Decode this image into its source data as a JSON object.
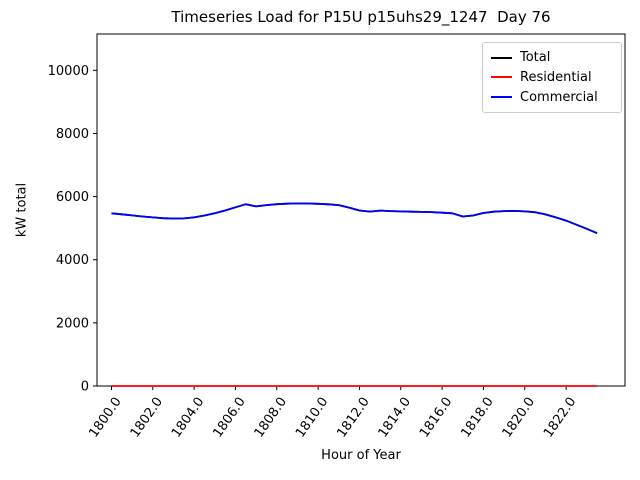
{
  "chart_data": {
    "type": "line",
    "title": "Timeseries Load for P15U p15uhs29_1247  Day 76",
    "xlabel": "Hour of Year",
    "ylabel": "kW total",
    "xlim": [
      1799.3,
      1824.85
    ],
    "ylim": [
      0,
      11150
    ],
    "grid": false,
    "legend_position": "upper right",
    "xticks": [
      {
        "value": 1800,
        "label": "1800.0"
      },
      {
        "value": 1802,
        "label": "1802.0"
      },
      {
        "value": 1804,
        "label": "1804.0"
      },
      {
        "value": 1806,
        "label": "1806.0"
      },
      {
        "value": 1808,
        "label": "1808.0"
      },
      {
        "value": 1810,
        "label": "1810.0"
      },
      {
        "value": 1812,
        "label": "1812.0"
      },
      {
        "value": 1814,
        "label": "1814.0"
      },
      {
        "value": 1816,
        "label": "1816.0"
      },
      {
        "value": 1818,
        "label": "1818.0"
      },
      {
        "value": 1820,
        "label": "1820.0"
      },
      {
        "value": 1822,
        "label": "1822.0"
      }
    ],
    "yticks": [
      {
        "value": 0,
        "label": "0"
      },
      {
        "value": 2000,
        "label": "2000"
      },
      {
        "value": 4000,
        "label": "4000"
      },
      {
        "value": 6000,
        "label": "6000"
      },
      {
        "value": 8000,
        "label": "8000"
      },
      {
        "value": 10000,
        "label": "10000"
      }
    ],
    "x": [
      1800.0,
      1800.5,
      1801.0,
      1801.5,
      1802.0,
      1802.5,
      1803.0,
      1803.5,
      1804.0,
      1804.5,
      1805.0,
      1805.5,
      1806.0,
      1806.5,
      1807.0,
      1807.5,
      1808.0,
      1808.5,
      1809.0,
      1809.5,
      1810.0,
      1810.5,
      1811.0,
      1811.5,
      1812.0,
      1812.5,
      1813.0,
      1813.5,
      1814.0,
      1814.5,
      1815.0,
      1815.5,
      1816.0,
      1816.5,
      1817.0,
      1817.5,
      1818.0,
      1818.5,
      1819.0,
      1819.5,
      1820.0,
      1820.5,
      1821.0,
      1821.5,
      1822.0,
      1822.5,
      1823.0,
      1823.5
    ],
    "series": [
      {
        "name": "Total",
        "color": "#000000",
        "values": [
          5470,
          5440,
          5405,
          5370,
          5340,
          5315,
          5305,
          5310,
          5340,
          5400,
          5470,
          5560,
          5660,
          5760,
          5690,
          5730,
          5760,
          5775,
          5785,
          5780,
          5770,
          5755,
          5730,
          5650,
          5560,
          5525,
          5555,
          5540,
          5530,
          5520,
          5515,
          5510,
          5490,
          5470,
          5370,
          5400,
          5480,
          5520,
          5540,
          5545,
          5530,
          5505,
          5435,
          5340,
          5240,
          5110,
          4980,
          4840
        ]
      },
      {
        "name": "Residential",
        "color": "#ff0000",
        "values": [
          0,
          0,
          0,
          0,
          0,
          0,
          0,
          0,
          0,
          0,
          0,
          0,
          0,
          0,
          0,
          0,
          0,
          0,
          0,
          0,
          0,
          0,
          0,
          0,
          0,
          0,
          0,
          0,
          0,
          0,
          0,
          0,
          0,
          0,
          0,
          0,
          0,
          0,
          0,
          0,
          0,
          0,
          0,
          0,
          0,
          0,
          0,
          0
        ]
      },
      {
        "name": "Commercial",
        "color": "#0000ff",
        "values": [
          5470,
          5440,
          5405,
          5370,
          5340,
          5315,
          5305,
          5310,
          5340,
          5400,
          5470,
          5560,
          5660,
          5760,
          5690,
          5730,
          5760,
          5775,
          5785,
          5780,
          5770,
          5755,
          5730,
          5650,
          5560,
          5525,
          5555,
          5540,
          5530,
          5520,
          5515,
          5510,
          5490,
          5470,
          5370,
          5400,
          5480,
          5520,
          5540,
          5545,
          5530,
          5505,
          5435,
          5340,
          5240,
          5110,
          4980,
          4840
        ]
      }
    ]
  }
}
